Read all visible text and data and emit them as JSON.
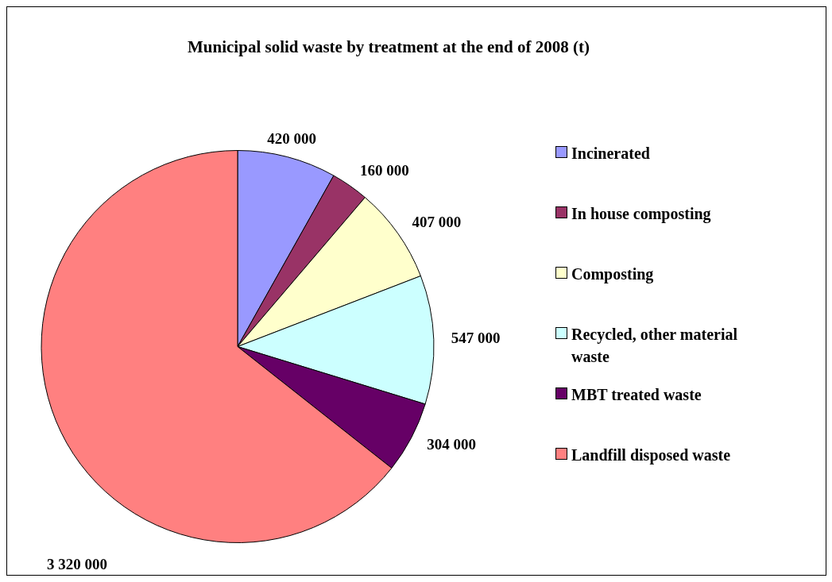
{
  "chart_data": {
    "type": "pie",
    "title": "Municipal solid waste by treatment at the end of 2008 (t)",
    "categories": [
      "Incinerated",
      "In house composting",
      "Composting",
      "Recycled, other material waste",
      "MBT treated waste",
      "Landfill disposed waste"
    ],
    "values": [
      420000,
      160000,
      407000,
      547000,
      304000,
      3320000
    ],
    "colors": [
      "#9999ff",
      "#993366",
      "#ffffcc",
      "#ccffff",
      "#660066",
      "#ff8080"
    ],
    "value_labels": [
      "420 000",
      "160 000",
      "407 000",
      "547 000",
      "304 000",
      "3 320 000"
    ],
    "legend": "right"
  }
}
